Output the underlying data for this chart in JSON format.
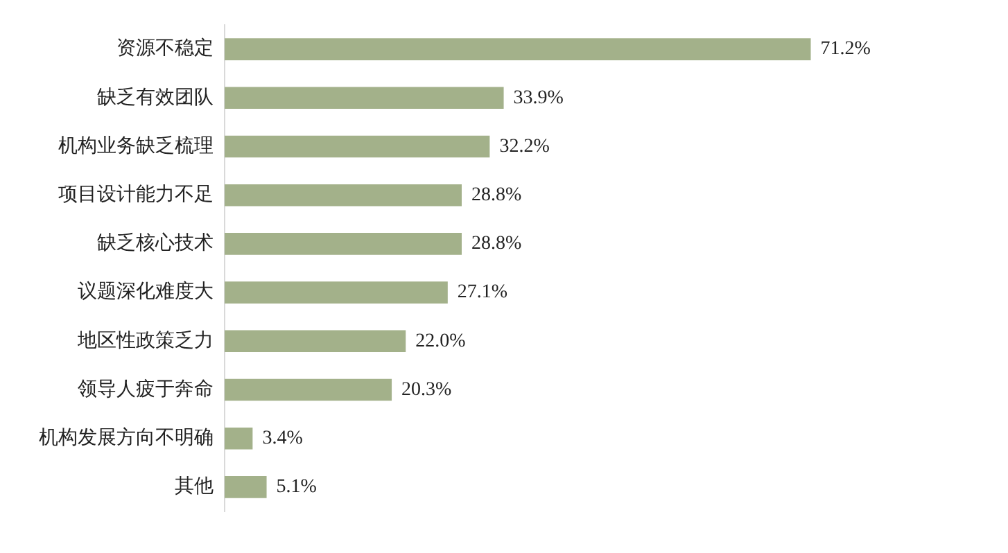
{
  "chart_data": {
    "type": "bar",
    "orientation": "horizontal",
    "categories": [
      "资源不稳定",
      "缺乏有效团队",
      "机构业务缺乏梳理",
      "项目设计能力不足",
      "缺乏核心技术",
      "议题深化难度大",
      "地区性政策乏力",
      "领导人疲于奔命",
      "机构发展方向不明确",
      "其他"
    ],
    "values": [
      71.2,
      33.9,
      32.2,
      28.8,
      28.8,
      27.1,
      22.0,
      20.3,
      3.4,
      5.1
    ],
    "value_labels": [
      "71.2%",
      "33.9%",
      "32.2%",
      "28.8%",
      "28.8%",
      "27.1%",
      "22.0%",
      "20.3%",
      "3.4%",
      "5.1%"
    ],
    "color": "#a3b18a",
    "legend": false,
    "tick_labels": "y"
  }
}
